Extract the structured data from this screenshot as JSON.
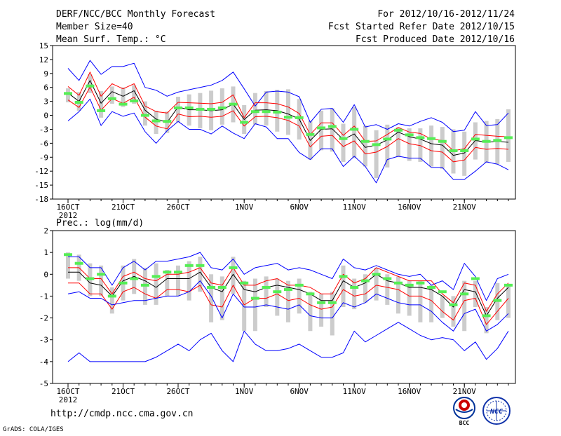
{
  "header": {
    "title": "DERF/NCC/BCC Monthly Forecast",
    "members": "Member Size=40",
    "variable": "Mean Surf. Temp.: °C",
    "period": "For 2012/10/16-2012/11/24",
    "started": "Fcst Started Refer Date 2012/10/15",
    "produced": "Fcst Produced Date 2012/10/16"
  },
  "footer": {
    "url": "http://cmdp.ncc.cma.gov.cn",
    "grads": "GrADS: COLA/IGES",
    "logo_bcc": "BCC",
    "logo_ncc": "NCC"
  },
  "colors": {
    "envelope": "#0000ff",
    "spread": "#ff0000",
    "mean": "#000000",
    "bar": "#cccccc",
    "marker": "#55ee55"
  },
  "chart_data": [
    {
      "type": "line",
      "label": "Mean Surf. Temp.: °C",
      "days": 40,
      "ylim": [
        -18,
        15
      ],
      "yticks": [
        -18,
        -15,
        -12,
        -9,
        -6,
        -3,
        0,
        3,
        6,
        9,
        12,
        15
      ],
      "xtick_labels": [
        {
          "day": 0,
          "label": "16OCT",
          "sublabel": "2012"
        },
        {
          "day": 5,
          "label": "21OCT"
        },
        {
          "day": 10,
          "label": "26OCT"
        },
        {
          "day": 16,
          "label": "1NOV"
        },
        {
          "day": 21,
          "label": "6NOV"
        },
        {
          "day": 26,
          "label": "11NOV"
        },
        {
          "day": 31,
          "label": "16NOV"
        },
        {
          "day": 36,
          "label": "21NOV"
        }
      ],
      "series": [
        {
          "name": "max",
          "values": [
            10.1,
            7.5,
            11.8,
            8.8,
            10.5,
            10.5,
            11.2,
            6,
            5.4,
            4.1,
            5,
            5.5,
            6,
            6.5,
            7.5,
            9.3,
            5.7,
            2,
            5,
            5.2,
            5,
            4,
            -1.5,
            1.3,
            1.5,
            -1.5,
            2.3,
            -2.5,
            -2,
            -3,
            -1.8,
            -2.3,
            -1.3,
            -0.5,
            -1.5,
            -3.5,
            -3.2,
            0.8,
            -2.2,
            -2,
            0.5
          ]
        },
        {
          "name": "upper",
          "values": [
            6.2,
            4.3,
            9.3,
            4.1,
            6.8,
            5.7,
            6.8,
            2,
            0.8,
            0.5,
            2.8,
            2.7,
            2.6,
            2.5,
            2.8,
            4.4,
            -0.5,
            2.7,
            2.7,
            2.5,
            1.8,
            0.4,
            -4.1,
            -1.6,
            -1.6,
            -4.3,
            -2.3,
            -5.6,
            -5.5,
            -4.1,
            -2.6,
            -3.6,
            -3.9,
            -5.1,
            -5.4,
            -7.6,
            -7.2,
            -4.1,
            -4.3,
            -4.5,
            -4.6
          ]
        },
        {
          "name": "mean",
          "values": [
            4.8,
            3,
            7.5,
            2.6,
            5.1,
            4.1,
            5.3,
            1.1,
            -0.8,
            -1.5,
            1.8,
            1.2,
            1.2,
            1,
            1.2,
            2.4,
            -0.9,
            1.1,
            1.2,
            1,
            0.3,
            -0.8,
            -5.4,
            -3,
            -2.9,
            -5.2,
            -4,
            -6.9,
            -6.4,
            -5.3,
            -3.6,
            -4.6,
            -5.1,
            -6.1,
            -6.4,
            -8.6,
            -8.1,
            -5.4,
            -5.8,
            -5.6,
            -5.8
          ]
        },
        {
          "name": "lower",
          "values": [
            3.3,
            1.7,
            6.1,
            1.1,
            3.6,
            2.6,
            3.9,
            -0.4,
            -2.3,
            -2.9,
            0.3,
            -0.3,
            -0.2,
            -0.4,
            -0.2,
            1,
            -2.3,
            -0.3,
            -0.2,
            -0.5,
            -1.1,
            -2.3,
            -6.8,
            -4.5,
            -4.3,
            -6.7,
            -5.5,
            -8.3,
            -7.9,
            -6.7,
            -5,
            -6.1,
            -6.5,
            -7.6,
            -7.9,
            -10,
            -9.6,
            -6.9,
            -7.3,
            -7.1,
            -7.3
          ]
        },
        {
          "name": "min",
          "values": [
            -1.2,
            0.8,
            3.5,
            -2.2,
            0.8,
            -0.2,
            0.5,
            -3.5,
            -6,
            -3.3,
            -1.3,
            -3,
            -3,
            -4,
            -2.3,
            -3.8,
            -5,
            -1.8,
            -2.5,
            -5,
            -5,
            -8,
            -9.5,
            -7.2,
            -7.2,
            -11,
            -8.8,
            -11,
            -14.5,
            -9.5,
            -8.8,
            -9.2,
            -9.2,
            -11.2,
            -11.2,
            -13.8,
            -13.8,
            -12,
            -10,
            -10.5,
            -11.7
          ]
        }
      ],
      "bars": [
        {
          "low": 2.8,
          "high": 5.8
        },
        {
          "low": 1,
          "high": 5
        },
        {
          "low": 4.8,
          "high": 8.8
        },
        {
          "low": -0.5,
          "high": 5.2
        },
        {
          "low": 2.5,
          "high": 6.2
        },
        {
          "low": 1.8,
          "high": 6
        },
        {
          "low": 2.5,
          "high": 6.5
        },
        {
          "low": -2.2,
          "high": 3
        },
        {
          "low": -4,
          "high": 1
        },
        {
          "low": -3.8,
          "high": 0.8
        },
        {
          "low": -1.5,
          "high": 4
        },
        {
          "low": -2.2,
          "high": 4.5
        },
        {
          "low": -2.8,
          "high": 4.8
        },
        {
          "low": -3.2,
          "high": 5.3
        },
        {
          "low": -2,
          "high": 5.8
        },
        {
          "low": -1.5,
          "high": 6.2
        },
        {
          "low": -4,
          "high": 2.2
        },
        {
          "low": -2,
          "high": 4.8
        },
        {
          "low": -2.2,
          "high": 5.2
        },
        {
          "low": -3.5,
          "high": 5.5
        },
        {
          "low": -4.2,
          "high": 5.6
        },
        {
          "low": -5.2,
          "high": 3.5
        },
        {
          "low": -9.5,
          "high": -1.2
        },
        {
          "low": -7.5,
          "high": 1
        },
        {
          "low": -7.8,
          "high": 1.5
        },
        {
          "low": -10,
          "high": -1.8
        },
        {
          "low": -9.2,
          "high": 1.8
        },
        {
          "low": -11,
          "high": -2.2
        },
        {
          "low": -13.5,
          "high": -3.2
        },
        {
          "low": -11.2,
          "high": -2
        },
        {
          "low": -9,
          "high": -2.6
        },
        {
          "low": -9.8,
          "high": -2.8
        },
        {
          "low": -10,
          "high": -2.8
        },
        {
          "low": -11,
          "high": -2.2
        },
        {
          "low": -11.5,
          "high": -2.5
        },
        {
          "low": -12.5,
          "high": -3
        },
        {
          "low": -13,
          "high": -3.5
        },
        {
          "low": -9.5,
          "high": -1.5
        },
        {
          "low": -10.2,
          "high": -1.2
        },
        {
          "low": -10.5,
          "high": -0.8
        },
        {
          "low": -10,
          "high": 1.3
        }
      ],
      "markers": [
        4.7,
        2.8,
        6.3,
        1,
        3.6,
        2.4,
        3.1,
        0,
        -1.2,
        -1.3,
        1.6,
        1.6,
        1.3,
        1.3,
        1.6,
        2.4,
        -1.5,
        0.8,
        0.8,
        0.7,
        -0.4,
        -0.5,
        -4.1,
        -2.7,
        -2.4,
        -5,
        -3,
        -5.6,
        -6.3,
        -5.1,
        -3.2,
        -4.2,
        -4.8,
        -5,
        -5.6,
        -7.6,
        -7.6,
        -5.1,
        -5.6,
        -5.4,
        -4.8
      ]
    },
    {
      "type": "line",
      "label": "Prec.: log(mm/d)",
      "days": 40,
      "ylim": [
        -5,
        2
      ],
      "yticks": [
        -5,
        -4,
        -3,
        -2,
        -1,
        0,
        1,
        2
      ],
      "xtick_labels": [
        {
          "day": 0,
          "label": "16OCT",
          "sublabel": "2012"
        },
        {
          "day": 5,
          "label": "21OCT"
        },
        {
          "day": 10,
          "label": "26OCT"
        },
        {
          "day": 16,
          "label": "1NOV"
        },
        {
          "day": 21,
          "label": "6NOV"
        },
        {
          "day": 26,
          "label": "11NOV"
        },
        {
          "day": 31,
          "label": "16NOV"
        },
        {
          "day": 36,
          "label": "21NOV"
        }
      ],
      "series": [
        {
          "name": "max",
          "values": [
            0.8,
            0.8,
            0.3,
            0.3,
            -0.5,
            0.3,
            0.6,
            0.2,
            0.6,
            0.6,
            0.7,
            0.8,
            1,
            0.3,
            0.2,
            0.7,
            0,
            0.3,
            0.4,
            0.5,
            0.2,
            0.3,
            0.2,
            0,
            -0.2,
            0.7,
            0.3,
            0.2,
            0.4,
            0.2,
            0,
            -0.1,
            0,
            -0.5,
            -0.3,
            -0.7,
            0.5,
            -0.1,
            -1.2,
            -0.2,
            0
          ]
        },
        {
          "name": "upper",
          "values": [
            0.3,
            0.3,
            -0.2,
            -0.2,
            -0.9,
            -0.1,
            0.1,
            -0.2,
            -0.3,
            0,
            0,
            0.1,
            0.3,
            -0.4,
            -0.5,
            0.3,
            -0.5,
            -0.5,
            -0.3,
            -0.2,
            -0.5,
            -0.5,
            -0.6,
            -0.9,
            -0.9,
            0,
            -0.4,
            -0.2,
            0.3,
            0.1,
            -0.1,
            -0.3,
            -0.3,
            -0.3,
            -0.9,
            -1.3,
            -0.4,
            -0.5,
            -1.7,
            -0.9,
            -0.4
          ]
        },
        {
          "name": "mean",
          "values": [
            0.1,
            0.1,
            -0.4,
            -0.5,
            -1,
            -0.3,
            -0.1,
            -0.3,
            -0.6,
            -0.2,
            -0.2,
            -0.2,
            0.1,
            -0.6,
            -0.8,
            0,
            -0.7,
            -0.8,
            -0.6,
            -0.5,
            -0.6,
            -0.7,
            -0.9,
            -1.2,
            -1.2,
            -0.3,
            -0.6,
            -0.4,
            0,
            -0.3,
            -0.4,
            -0.6,
            -0.6,
            -0.7,
            -1,
            -1.5,
            -0.7,
            -0.8,
            -1.9,
            -1.1,
            -0.6
          ]
        },
        {
          "name": "lower",
          "values": [
            -0.4,
            -0.4,
            -0.9,
            -0.9,
            -1.6,
            -0.8,
            -0.6,
            -0.9,
            -1.1,
            -0.7,
            -0.7,
            -0.8,
            -0.5,
            -1.4,
            -1.5,
            -0.5,
            -1.4,
            -1.1,
            -1.1,
            -0.9,
            -1.2,
            -1.1,
            -1.4,
            -1.6,
            -1.5,
            -0.7,
            -1,
            -0.9,
            -0.5,
            -0.6,
            -0.7,
            -1,
            -1,
            -1.2,
            -1.7,
            -2.1,
            -1.2,
            -1.1,
            -2.3,
            -1.7,
            -1.1
          ]
        },
        {
          "name": "min",
          "values": [
            -0.9,
            -0.8,
            -1.1,
            -1.1,
            -1.4,
            -1.3,
            -1.2,
            -1.2,
            -1.1,
            -1,
            -1,
            -0.8,
            -0.3,
            -1,
            -2,
            -0.9,
            -1.5,
            -1.5,
            -1.4,
            -1.5,
            -1.6,
            -1.4,
            -1.9,
            -2,
            -2,
            -1.3,
            -1.5,
            -1.3,
            -0.9,
            -1.1,
            -1.3,
            -1.4,
            -1.4,
            -1.7,
            -2.2,
            -2.6,
            -1.8,
            -1.6,
            -2.6,
            -2.3,
            -1.8
          ]
        },
        {
          "name": "low-envelope",
          "values": [
            -4,
            -3.6,
            -4,
            -4,
            -4,
            -4,
            -4,
            -4,
            -3.8,
            -3.5,
            -3.2,
            -3.5,
            -3,
            -2.7,
            -3.5,
            -4,
            -2.6,
            -3.2,
            -3.5,
            -3.5,
            -3.4,
            -3.2,
            -3.5,
            -3.8,
            -3.8,
            -3.6,
            -2.6,
            -3.1,
            -2.8,
            -2.5,
            -2.2,
            -2.5,
            -2.8,
            -3,
            -2.9,
            -3,
            -3.5,
            -3.1,
            -3.9,
            -3.4,
            -2.6
          ]
        }
      ],
      "bars": [
        {
          "low": -0.2,
          "high": 1
        },
        {
          "low": -0.3,
          "high": 0.9
        },
        {
          "low": -1,
          "high": 0.5
        },
        {
          "low": -1,
          "high": 0.4
        },
        {
          "low": -1.8,
          "high": -0.6
        },
        {
          "low": -1.2,
          "high": 0.4
        },
        {
          "low": -0.9,
          "high": 0.7
        },
        {
          "low": -1.4,
          "high": 0.3
        },
        {
          "low": -1.4,
          "high": 0.5
        },
        {
          "low": -1,
          "high": 0.2
        },
        {
          "low": -1,
          "high": 0.4
        },
        {
          "low": -1.2,
          "high": 0.6
        },
        {
          "low": -0.8,
          "high": 0.8
        },
        {
          "low": -2.2,
          "high": 0
        },
        {
          "low": -2.1,
          "high": -0.1
        },
        {
          "low": -0.9,
          "high": 0.8
        },
        {
          "low": -2.6,
          "high": -0.3
        },
        {
          "low": -2.6,
          "high": -0.2
        },
        {
          "low": -1.5,
          "high": -0.1
        },
        {
          "low": -1.9,
          "high": -0.2
        },
        {
          "low": -2.2,
          "high": -0.3
        },
        {
          "low": -1.8,
          "high": -0.2
        },
        {
          "low": -2.6,
          "high": -0.8
        },
        {
          "low": -2.4,
          "high": -0.9
        },
        {
          "low": -2.8,
          "high": -0.8
        },
        {
          "low": -1.5,
          "high": 0.4
        },
        {
          "low": -1.6,
          "high": -0.2
        },
        {
          "low": -1.3,
          "high": 0
        },
        {
          "low": -1.2,
          "high": 0.3
        },
        {
          "low": -1.4,
          "high": 0
        },
        {
          "low": -1.8,
          "high": -0.1
        },
        {
          "low": -1.9,
          "high": -0.3
        },
        {
          "low": -2.2,
          "high": -0.3
        },
        {
          "low": -2.2,
          "high": -0.5
        },
        {
          "low": -2,
          "high": -1
        },
        {
          "low": -2.4,
          "high": -1
        },
        {
          "low": -2.6,
          "high": -0.3
        },
        {
          "low": -1.5,
          "high": -0.3
        },
        {
          "low": -2.7,
          "high": -1.5
        },
        {
          "low": -2.1,
          "high": -0.4
        },
        {
          "low": -2,
          "high": -0.5
        }
      ],
      "markers": [
        0.9,
        0.5,
        -0.2,
        0,
        -1,
        -0.4,
        -0.2,
        -0.5,
        -0.1,
        0.1,
        0.1,
        0.4,
        0.4,
        -0.6,
        -0.6,
        0.3,
        -0.4,
        -1.1,
        -0.6,
        -0.8,
        -0.7,
        -0.5,
        -0.9,
        -1.3,
        -1.3,
        -0.1,
        -0.6,
        -0.3,
        0,
        -0.2,
        -0.4,
        -0.5,
        -0.4,
        -0.6,
        -0.8,
        -1.4,
        -0.9,
        -0.2,
        -1.9,
        -1.2,
        -0.5
      ]
    }
  ]
}
